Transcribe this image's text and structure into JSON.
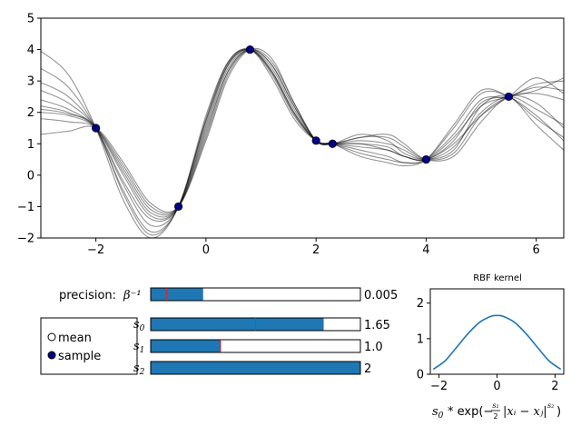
{
  "main_plot": {
    "xlim": [
      -3,
      6.5
    ],
    "ylim": [
      -2,
      5
    ],
    "x_ticks": [
      -2,
      0,
      2,
      4,
      6
    ],
    "y_ticks": [
      -2,
      -1,
      0,
      1,
      2,
      3,
      4,
      5
    ]
  },
  "chart_data": [
    {
      "type": "line",
      "description_series": "Gaussian process posterior sample curves (grey) through observed points (blue)",
      "xlim": [
        -3,
        6.5
      ],
      "ylim": [
        -2,
        5
      ],
      "observations": {
        "x": [
          -2,
          -0.5,
          0.8,
          2,
          2.3,
          4,
          5.5
        ],
        "y": [
          1.5,
          -1.0,
          4.0,
          1.1,
          1.0,
          0.5,
          2.5
        ]
      },
      "sample_curves": {
        "x": [
          -3,
          -2.5,
          -2,
          -1.5,
          -1,
          -0.5,
          0,
          0.4,
          0.8,
          1.2,
          1.6,
          2,
          2.3,
          2.8,
          3.3,
          3.6,
          4,
          4.5,
          5,
          5.5,
          6,
          6.5
        ],
        "series": [
          {
            "values": [
              3.95,
              3.2,
              1.5,
              -0.8,
              -2.0,
              -1.0,
              1.9,
              3.6,
              4.0,
              3.1,
              1.8,
              1.1,
              1.0,
              0.8,
              0.6,
              0.4,
              0.5,
              1.3,
              2.4,
              2.5,
              2.9,
              3.0
            ]
          },
          {
            "values": [
              3.4,
              2.8,
              1.5,
              -0.5,
              -1.8,
              -1.0,
              1.8,
              3.6,
              4.0,
              3.2,
              1.9,
              1.1,
              1.0,
              1.1,
              1.0,
              0.8,
              0.5,
              0.9,
              2.0,
              2.5,
              2.1,
              1.6
            ]
          },
          {
            "values": [
              2.95,
              2.5,
              1.5,
              -0.3,
              -1.6,
              -1.0,
              1.7,
              3.5,
              4.0,
              3.3,
              2.0,
              1.1,
              1.0,
              1.2,
              1.3,
              1.0,
              0.5,
              0.6,
              1.7,
              2.5,
              2.3,
              1.5
            ]
          },
          {
            "values": [
              2.7,
              2.3,
              1.5,
              -0.2,
              -1.4,
              -1.0,
              1.6,
              3.5,
              4.0,
              3.3,
              2.0,
              1.1,
              1.0,
              1.3,
              1.1,
              0.7,
              0.5,
              0.8,
              2.2,
              2.5,
              1.6,
              0.8
            ]
          },
          {
            "values": [
              2.4,
              2.1,
              1.5,
              0.0,
              -1.3,
              -1.0,
              1.5,
              3.4,
              4.0,
              3.4,
              2.1,
              1.1,
              1.0,
              1.0,
              0.9,
              0.6,
              0.5,
              1.1,
              2.3,
              2.5,
              2.7,
              3.1
            ]
          },
          {
            "values": [
              2.2,
              2.0,
              1.5,
              0.1,
              -1.2,
              -1.0,
              1.4,
              3.3,
              4.0,
              3.5,
              2.2,
              1.1,
              1.0,
              0.7,
              0.5,
              0.4,
              0.5,
              1.5,
              2.6,
              2.5,
              1.8,
              1.2
            ]
          },
          {
            "values": [
              2.0,
              1.9,
              1.5,
              0.2,
              -1.1,
              -1.0,
              1.3,
              3.3,
              4.0,
              3.5,
              2.2,
              1.1,
              1.0,
              0.9,
              0.8,
              0.6,
              0.5,
              1.0,
              1.9,
              2.5,
              3.1,
              2.6
            ]
          },
          {
            "values": [
              1.8,
              1.7,
              1.5,
              0.3,
              -1.0,
              -1.0,
              1.2,
              3.2,
              4.0,
              3.6,
              2.3,
              1.1,
              1.0,
              1.2,
              1.2,
              0.9,
              0.5,
              0.7,
              1.9,
              2.5,
              2.6,
              2.4
            ]
          },
          {
            "values": [
              1.3,
              1.4,
              1.5,
              0.4,
              -0.9,
              -1.0,
              1.1,
              3.1,
              4.0,
              3.7,
              2.3,
              1.1,
              1.0,
              0.6,
              0.4,
              0.3,
              0.5,
              1.6,
              2.7,
              2.5,
              1.9,
              1.1
            ]
          },
          {
            "values": [
              2.1,
              1.95,
              1.5,
              -0.6,
              -1.9,
              -1.0,
              1.75,
              3.55,
              4.0,
              3.25,
              1.95,
              1.1,
              1.0,
              1.0,
              0.8,
              0.6,
              0.5,
              1.2,
              2.2,
              2.5,
              2.8,
              2.7
            ]
          }
        ]
      }
    },
    {
      "type": "line",
      "title": "RBF kernel",
      "xlim": [
        -2.3,
        2.3
      ],
      "ylim": [
        0,
        2.4
      ],
      "x_ticks": [
        -2,
        0,
        2
      ],
      "y_ticks": [
        0,
        1,
        2
      ],
      "x": [
        -2.2,
        -1.8,
        -1.4,
        -1.0,
        -0.6,
        -0.2,
        0.0,
        0.2,
        0.6,
        1.0,
        1.4,
        1.8,
        2.2
      ],
      "values": [
        0.14,
        0.37,
        0.75,
        1.14,
        1.46,
        1.63,
        1.65,
        1.63,
        1.46,
        1.14,
        0.75,
        0.37,
        0.14
      ],
      "line_color": "#1f77b4"
    }
  ],
  "legend": {
    "mean_label": "mean",
    "sample_label": "sample"
  },
  "sliders": {
    "precision_label": "precision:",
    "precision_symbol": "β⁻¹",
    "items": [
      {
        "symbol": "s",
        "sub": "0",
        "value": 1.65,
        "value_text": "1.65",
        "max": 2.0,
        "marker": 1.0
      },
      {
        "symbol": "s",
        "sub": "1",
        "value": 1.0,
        "value_text": "1.0",
        "max": 3.0,
        "marker": 1.0
      },
      {
        "symbol": "s",
        "sub": "2",
        "value": 2,
        "value_text": "2",
        "max": 2.0,
        "marker": null
      }
    ],
    "precision": {
      "value": 0.005,
      "value_text": "0.005",
      "max": 0.02,
      "marker": 0.0015
    }
  },
  "kernel_formula": {
    "prefix": "s",
    "text": "* exp(−",
    "frac_num": "s₁",
    "frac_den": "2",
    "abs": "|xᵢ − xⱼ|",
    "power": "s₂",
    "close": ")"
  },
  "colors": {
    "sample_point": "#00008b",
    "curve": "#000000",
    "bar_fill": "#1f77b4",
    "marker": "#d62728"
  }
}
